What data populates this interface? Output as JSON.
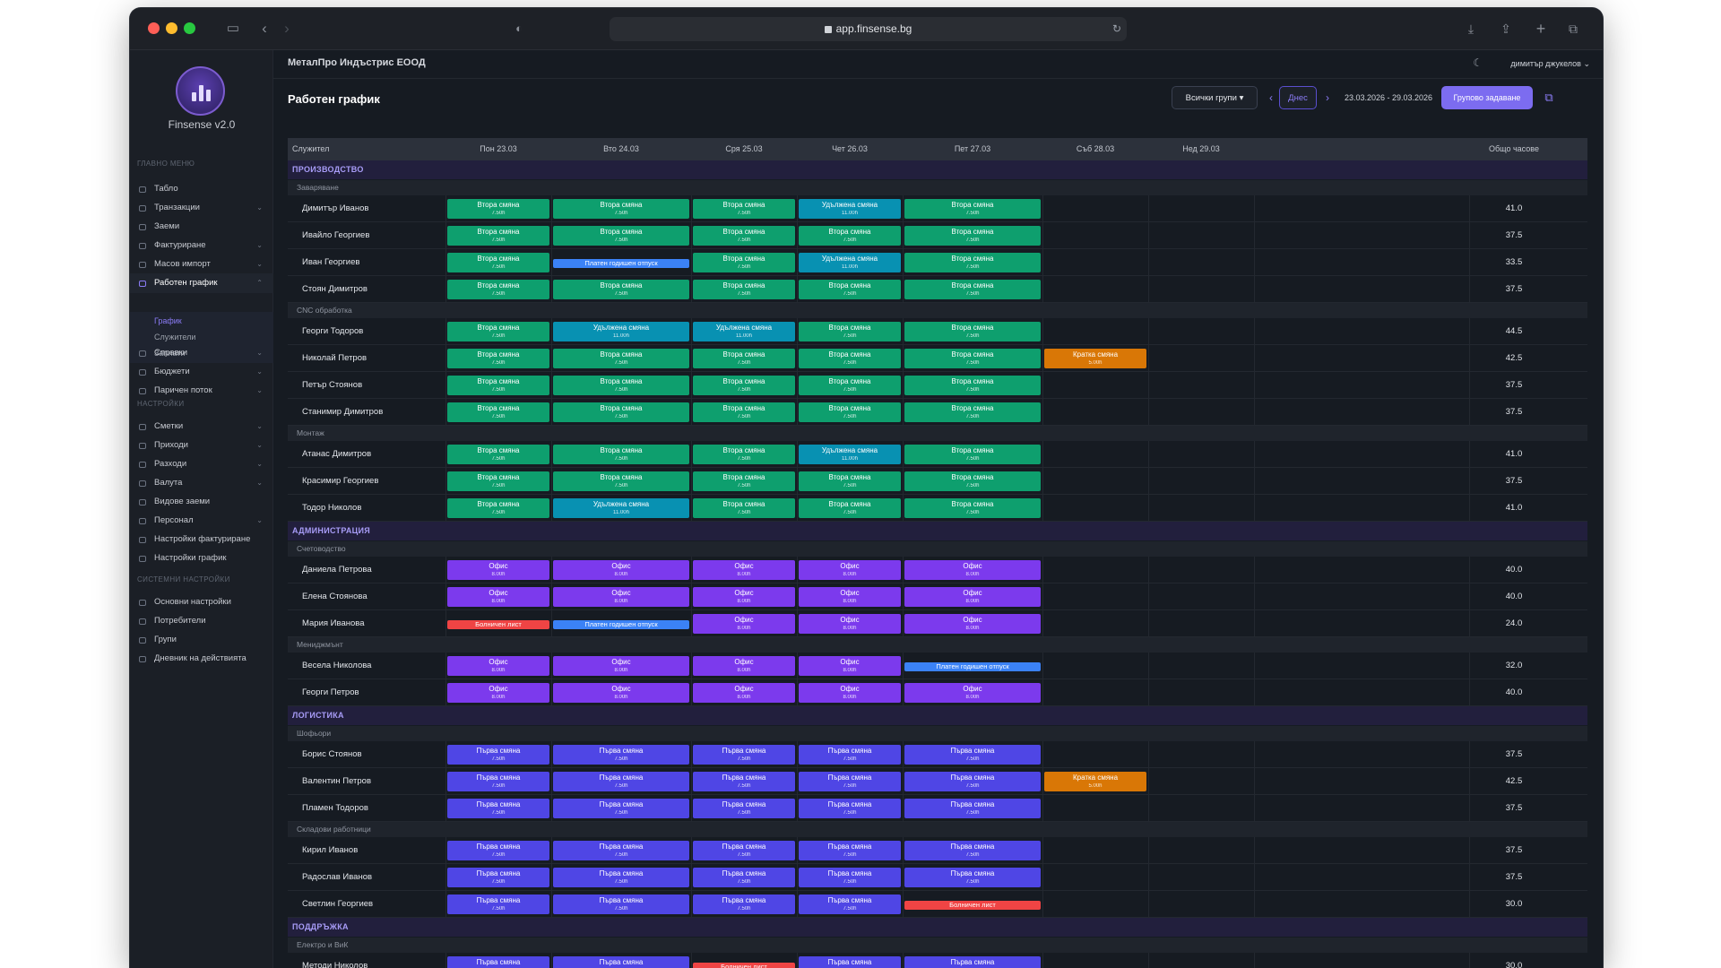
{
  "browser": {
    "url": "app.finsense.bg"
  },
  "app": {
    "brand": "Finsense v2.0",
    "org": "МеталПро Индъстрис ЕООД",
    "user": "димитър джукелов",
    "title": "Работен график"
  },
  "sidebar": {
    "main_header": "ГЛАВНО МЕНЮ",
    "main": [
      {
        "label": "Табло"
      },
      {
        "label": "Транзакции",
        "chev": "⌄"
      },
      {
        "label": "Заеми"
      },
      {
        "label": "Фактуриране",
        "chev": "⌄"
      },
      {
        "label": "Масов импорт",
        "chev": "⌄"
      },
      {
        "label": "Работен график",
        "chev": "⌃",
        "active": true
      },
      {
        "label": "Справки",
        "chev": "⌄"
      },
      {
        "label": "Бюджети",
        "chev": "⌄"
      },
      {
        "label": "Паричен поток",
        "chev": "⌄"
      }
    ],
    "sub": [
      "График",
      "Служители",
      "Заплати"
    ],
    "settings_header": "НАСТРОЙКИ",
    "settings": [
      {
        "label": "Сметки",
        "chev": "⌄"
      },
      {
        "label": "Приходи",
        "chev": "⌄"
      },
      {
        "label": "Разходи",
        "chev": "⌄"
      },
      {
        "label": "Валута",
        "chev": "⌄"
      },
      {
        "label": "Видове заеми"
      },
      {
        "label": "Персонал",
        "chev": "⌄"
      },
      {
        "label": "Настройки фактуриране"
      },
      {
        "label": "Настройки график"
      }
    ],
    "system_header": "СИСТЕМНИ НАСТРОЙКИ",
    "system": [
      {
        "label": "Основни настройки"
      },
      {
        "label": "Потребители"
      },
      {
        "label": "Групи"
      },
      {
        "label": "Дневник на действията"
      }
    ]
  },
  "controls": {
    "group_filter": "Всички групи",
    "today": "Днес",
    "range": "23.03.2026 - 29.03.2026",
    "bulk": "Групово задаване",
    "prev": "‹",
    "next": "›",
    "copy": "⧉"
  },
  "table": {
    "headers": [
      "Служител",
      "Пон 23.03",
      "Вто 24.03",
      "Сря 25.03",
      "Чет 26.03",
      "Пет 27.03",
      "Съб 28.03",
      "Нед 29.03",
      "Общо часове"
    ],
    "shift_types": {
      "V": {
        "label": "Втора смяна",
        "hours": "7.50h",
        "color": "#0e9f6e"
      },
      "U": {
        "label": "Удължена смяна",
        "hours": "11.00h",
        "color": "#0891b2"
      },
      "P": {
        "label": "Платен годишен отпуск",
        "hours": "",
        "color": "#3b82f6"
      },
      "K": {
        "label": "Кратка смяна",
        "hours": "5.00h",
        "color": "#d97706"
      },
      "O": {
        "label": "Офис",
        "hours": "8.00h",
        "color": "#7c3aed"
      },
      "B": {
        "label": "Болничен лист",
        "hours": "",
        "color": "#ef4444"
      },
      "F": {
        "label": "Първа смяна",
        "hours": "7.50h",
        "color": "#4f46e5"
      }
    },
    "groups": [
      {
        "name": "ПРОИЗВОДСТВО",
        "subgroups": [
          {
            "name": "Заваряване",
            "employees": [
              {
                "name": "Димитър Иванов",
                "shifts": [
                  "V",
                  "V",
                  "V",
                  "U",
                  "V",
                  "",
                  ""
                ],
                "total": "41.0"
              },
              {
                "name": "Ивайло Георгиев",
                "shifts": [
                  "V",
                  "V",
                  "V",
                  "V",
                  "V",
                  "",
                  ""
                ],
                "total": "37.5"
              },
              {
                "name": "Иван Георгиев",
                "shifts": [
                  "V",
                  "P",
                  "V",
                  "U",
                  "V",
                  "",
                  ""
                ],
                "total": "33.5"
              },
              {
                "name": "Стоян Димитров",
                "shifts": [
                  "V",
                  "V",
                  "V",
                  "V",
                  "V",
                  "",
                  ""
                ],
                "total": "37.5"
              }
            ]
          },
          {
            "name": "CNC обработка",
            "employees": [
              {
                "name": "Георги Тодоров",
                "shifts": [
                  "V",
                  "U",
                  "U",
                  "V",
                  "V",
                  "",
                  ""
                ],
                "total": "44.5"
              },
              {
                "name": "Николай Петров",
                "shifts": [
                  "V",
                  "V",
                  "V",
                  "V",
                  "V",
                  "K",
                  ""
                ],
                "total": "42.5"
              },
              {
                "name": "Петър Стоянов",
                "shifts": [
                  "V",
                  "V",
                  "V",
                  "V",
                  "V",
                  "",
                  ""
                ],
                "total": "37.5"
              },
              {
                "name": "Станимир Димитров",
                "shifts": [
                  "V",
                  "V",
                  "V",
                  "V",
                  "V",
                  "",
                  ""
                ],
                "total": "37.5"
              }
            ]
          },
          {
            "name": "Монтаж",
            "employees": [
              {
                "name": "Атанас Димитров",
                "shifts": [
                  "V",
                  "V",
                  "V",
                  "U",
                  "V",
                  "",
                  ""
                ],
                "total": "41.0"
              },
              {
                "name": "Красимир Георгиев",
                "shifts": [
                  "V",
                  "V",
                  "V",
                  "V",
                  "V",
                  "",
                  ""
                ],
                "total": "37.5"
              },
              {
                "name": "Тодор Николов",
                "shifts": [
                  "V",
                  "U",
                  "V",
                  "V",
                  "V",
                  "",
                  ""
                ],
                "total": "41.0"
              }
            ]
          }
        ]
      },
      {
        "name": "АДМИНИСТРАЦИЯ",
        "subgroups": [
          {
            "name": "Счетоводство",
            "employees": [
              {
                "name": "Даниела Петрова",
                "shifts": [
                  "O",
                  "O",
                  "O",
                  "O",
                  "O",
                  "",
                  ""
                ],
                "total": "40.0"
              },
              {
                "name": "Елена Стоянова",
                "shifts": [
                  "O",
                  "O",
                  "O",
                  "O",
                  "O",
                  "",
                  ""
                ],
                "total": "40.0"
              },
              {
                "name": "Мария Иванова",
                "shifts": [
                  "B",
                  "P",
                  "O",
                  "O",
                  "O",
                  "",
                  ""
                ],
                "total": "24.0"
              }
            ]
          },
          {
            "name": "Мениджмънт",
            "employees": [
              {
                "name": "Весела Николова",
                "shifts": [
                  "O",
                  "O",
                  "O",
                  "O",
                  "P",
                  "",
                  ""
                ],
                "total": "32.0"
              },
              {
                "name": "Георги Петров",
                "shifts": [
                  "O",
                  "O",
                  "O",
                  "O",
                  "O",
                  "",
                  ""
                ],
                "total": "40.0"
              }
            ]
          }
        ]
      },
      {
        "name": "ЛОГИСТИКА",
        "subgroups": [
          {
            "name": "Шофьори",
            "employees": [
              {
                "name": "Борис Стоянов",
                "shifts": [
                  "F",
                  "F",
                  "F",
                  "F",
                  "F",
                  "",
                  ""
                ],
                "total": "37.5"
              },
              {
                "name": "Валентин Петров",
                "shifts": [
                  "F",
                  "F",
                  "F",
                  "F",
                  "F",
                  "K",
                  ""
                ],
                "total": "42.5"
              },
              {
                "name": "Пламен Тодоров",
                "shifts": [
                  "F",
                  "F",
                  "F",
                  "F",
                  "F",
                  "",
                  ""
                ],
                "total": "37.5"
              }
            ]
          },
          {
            "name": "Складови работници",
            "employees": [
              {
                "name": "Кирил Иванов",
                "shifts": [
                  "F",
                  "F",
                  "F",
                  "F",
                  "F",
                  "",
                  ""
                ],
                "total": "37.5"
              },
              {
                "name": "Радослав Иванов",
                "shifts": [
                  "F",
                  "F",
                  "F",
                  "F",
                  "F",
                  "",
                  ""
                ],
                "total": "37.5"
              },
              {
                "name": "Светлин Георгиев",
                "shifts": [
                  "F",
                  "F",
                  "F",
                  "F",
                  "B",
                  "",
                  ""
                ],
                "total": "30.0"
              }
            ]
          }
        ]
      },
      {
        "name": "ПОДДРЪЖКА",
        "subgroups": [
          {
            "name": "Електро и ВиК",
            "employees": [
              {
                "name": "Методи Николов",
                "shifts": [
                  "F",
                  "F",
                  "B",
                  "F",
                  "F",
                  "",
                  ""
                ],
                "total": "30.0"
              }
            ]
          }
        ]
      }
    ]
  }
}
